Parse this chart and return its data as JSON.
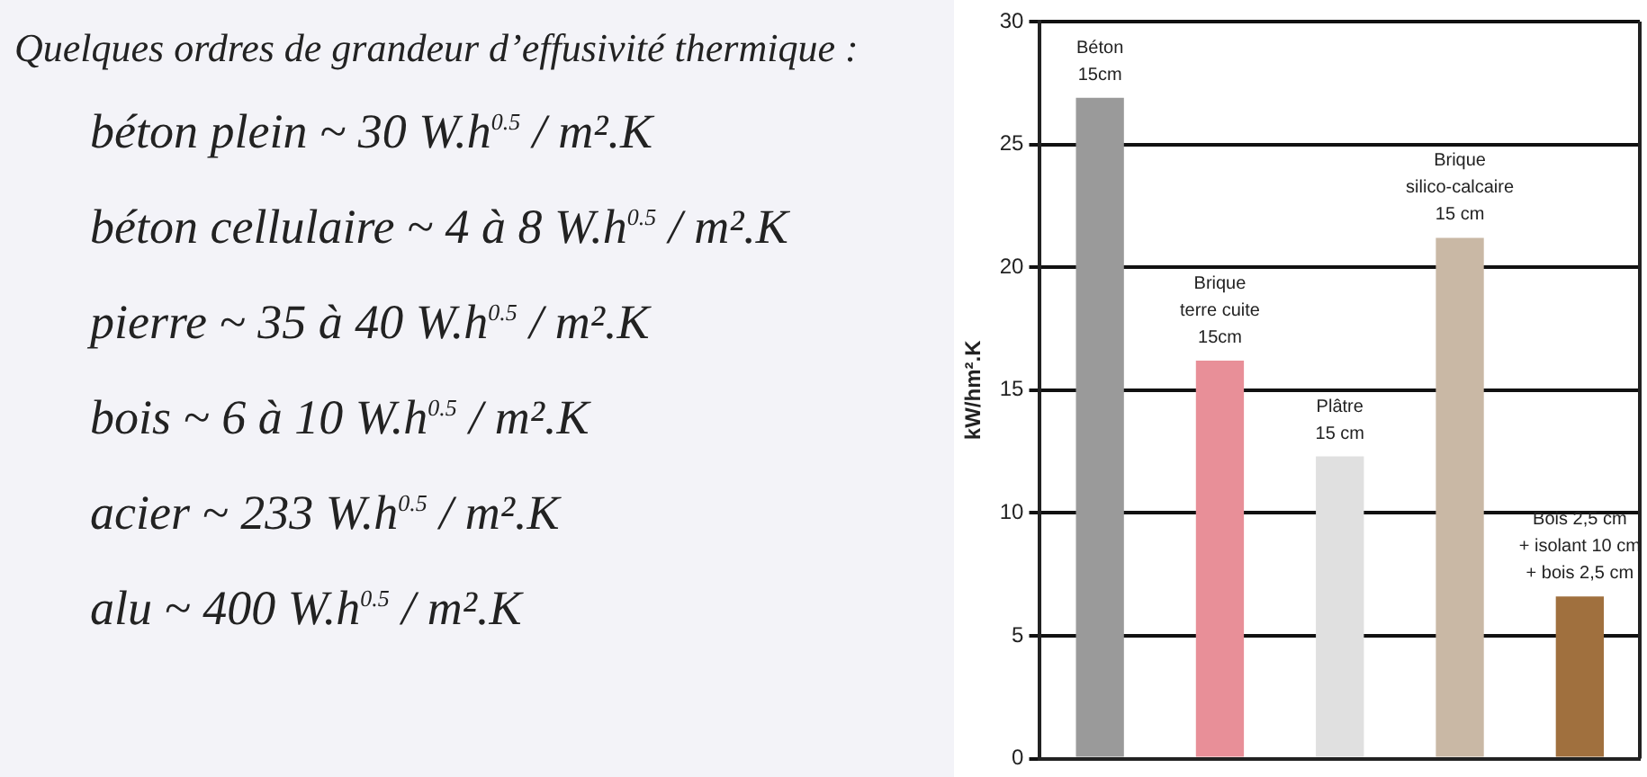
{
  "chart_data": [
    {
      "type": "other",
      "title": "Quelques ordres de grandeur d’effusivité thermique :",
      "annotations": [
        "béton plein ~ 30 W.h$^{0.5}$ / m².K",
        "béton cellulaire ~ 4 à 8 W.h$^{0.5}$ / m².K",
        "pierre ~ 35 à 40 W.h$^{0.5}$ / m².K",
        "bois ~ 6 à 10 W.h$^{0.5}$ / m².K",
        "acier ~ 233 W.h$^{0.5}$ / m².K",
        "alu ~ 400 W.h$^{0.5}$ / m².K"
      ]
    },
    {
      "type": "bar",
      "ylabel": "kW/hm².K",
      "categories": [
        "Béton\n15cm",
        "Brique\nterre cuite\n15cm",
        "Plâtre\n15 cm",
        "Brique\nsilico-calcaire\n15 cm",
        "Bois 2,5 cm\n+ isolant 10 cm\n+ bois 2,5 cm"
      ],
      "values": [
        26.9,
        16.2,
        12.3,
        21.2,
        6.6
      ],
      "colors": [
        "#9a9a9a",
        "#e88f98",
        "#e0e0e0",
        "#c9b8a5",
        "#a0703e"
      ],
      "ylim": [
        0,
        30
      ],
      "yticks": [
        0,
        5,
        10,
        15,
        20,
        25,
        30
      ],
      "grid": "y",
      "legend": false
    }
  ]
}
